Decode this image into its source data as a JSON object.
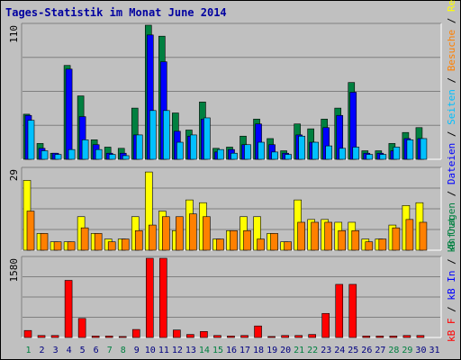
{
  "title": "Tages-Statistik im Monat June 2014",
  "colors": {
    "anfragen": "#008040",
    "dateien": "#0000ff",
    "seiten": "#00c0ff",
    "rechner": "#ffff00",
    "besuche": "#ff8000",
    "kbf": "#ff0000",
    "weekend": "#008040",
    "weekday": "#000080"
  },
  "legend_right": [
    {
      "text": "Anfragen",
      "color": "#008040"
    },
    {
      "text": " / ",
      "color": "#000000"
    },
    {
      "text": "Dateien",
      "color": "#0000ff"
    },
    {
      "text": " / ",
      "color": "#000000"
    },
    {
      "text": "Seiten",
      "color": "#00c0ff"
    },
    {
      "text": " / ",
      "color": "#000000"
    },
    {
      "text": "Besuche",
      "color": "#ff8000"
    },
    {
      "text": " / ",
      "color": "#000000"
    },
    {
      "text": "Rechner (IP-Adressen)",
      "color": "#ffff00"
    }
  ],
  "legend_right_bottom": [
    {
      "text": "kB F",
      "color": "#ff0000"
    },
    {
      "text": " / ",
      "color": "#000000"
    },
    {
      "text": "kB In",
      "color": "#0000ff"
    },
    {
      "text": " / ",
      "color": "#000000"
    },
    {
      "text": "kB Out",
      "color": "#008040"
    }
  ],
  "chart_data": [
    {
      "type": "bar",
      "panel": "top",
      "ylabel_max": "110",
      "ylim": [
        0,
        110
      ],
      "categories": [
        "1",
        "2",
        "3",
        "4",
        "5",
        "6",
        "7",
        "8",
        "9",
        "10",
        "11",
        "12",
        "13",
        "14",
        "15",
        "16",
        "17",
        "18",
        "19",
        "20",
        "21",
        "22",
        "23",
        "24",
        "25",
        "26",
        "27",
        "28",
        "29",
        "30",
        "31"
      ],
      "series": [
        {
          "name": "Anfragen",
          "values": [
            37,
            13,
            5,
            77,
            52,
            16,
            10,
            9,
            42,
            110,
            101,
            38,
            24,
            47,
            9,
            10,
            19,
            33,
            17,
            7,
            29,
            25,
            33,
            42,
            63,
            7,
            7,
            13,
            22,
            26,
            0
          ]
        },
        {
          "name": "Dateien",
          "values": [
            36,
            9,
            5,
            74,
            35,
            12,
            5,
            5,
            20,
            102,
            80,
            23,
            19,
            33,
            6,
            8,
            12,
            29,
            12,
            5,
            20,
            14,
            26,
            36,
            55,
            5,
            5,
            7,
            17,
            17,
            0
          ]
        },
        {
          "name": "Seiten",
          "values": [
            32,
            7,
            4,
            8,
            16,
            8,
            4,
            3,
            20,
            40,
            40,
            14,
            20,
            34,
            8,
            5,
            12,
            14,
            6,
            4,
            19,
            14,
            11,
            9,
            10,
            4,
            4,
            10,
            16,
            17,
            0
          ]
        }
      ]
    },
    {
      "type": "bar",
      "panel": "middle",
      "ylabel_max": "29",
      "ylim": [
        0,
        29
      ],
      "categories": [
        "1",
        "2",
        "3",
        "4",
        "5",
        "6",
        "7",
        "8",
        "9",
        "10",
        "11",
        "12",
        "13",
        "14",
        "15",
        "16",
        "17",
        "18",
        "19",
        "20",
        "21",
        "22",
        "23",
        "24",
        "25",
        "26",
        "27",
        "28",
        "29",
        "30",
        "31"
      ],
      "series": [
        {
          "name": "Rechner (IP-Adressen)",
          "values": [
            25,
            6,
            3,
            3,
            12,
            6,
            4,
            4,
            12,
            28,
            14,
            7,
            18,
            17,
            4,
            7,
            12,
            12,
            6,
            3,
            18,
            11,
            11,
            10,
            10,
            4,
            4,
            9,
            16,
            17,
            0
          ]
        },
        {
          "name": "Besuche",
          "values": [
            14,
            6,
            3,
            3,
            8,
            6,
            3,
            4,
            7,
            9,
            12,
            12,
            13,
            12,
            4,
            7,
            7,
            4,
            6,
            3,
            10,
            10,
            10,
            7,
            7,
            3,
            4,
            8,
            11,
            10,
            0
          ]
        }
      ]
    },
    {
      "type": "bar",
      "panel": "bottom",
      "ylabel_max": "1580",
      "ylim": [
        0,
        1580
      ],
      "categories": [
        "1",
        "2",
        "3",
        "4",
        "5",
        "6",
        "7",
        "8",
        "9",
        "10",
        "11",
        "12",
        "13",
        "14",
        "15",
        "16",
        "17",
        "18",
        "19",
        "20",
        "21",
        "22",
        "23",
        "24",
        "25",
        "26",
        "27",
        "28",
        "29",
        "30",
        "31"
      ],
      "series": [
        {
          "name": "kB F",
          "values": [
            140,
            40,
            40,
            1140,
            380,
            30,
            30,
            20,
            160,
            1580,
            1580,
            150,
            60,
            120,
            40,
            30,
            40,
            230,
            20,
            40,
            40,
            60,
            480,
            1060,
            1060,
            30,
            30,
            30,
            40,
            40,
            0
          ]
        }
      ]
    }
  ],
  "weekend_days": [
    1,
    7,
    8,
    14,
    15,
    21,
    22,
    28,
    29
  ],
  "x_tick_labels": [
    "1",
    "2",
    "3",
    "4",
    "5",
    "6",
    "7",
    "8",
    "9",
    "10",
    "11",
    "12",
    "13",
    "14",
    "15",
    "16",
    "17",
    "18",
    "19",
    "20",
    "21",
    "22",
    "23",
    "24",
    "25",
    "26",
    "27",
    "28",
    "29",
    "30",
    "31"
  ]
}
